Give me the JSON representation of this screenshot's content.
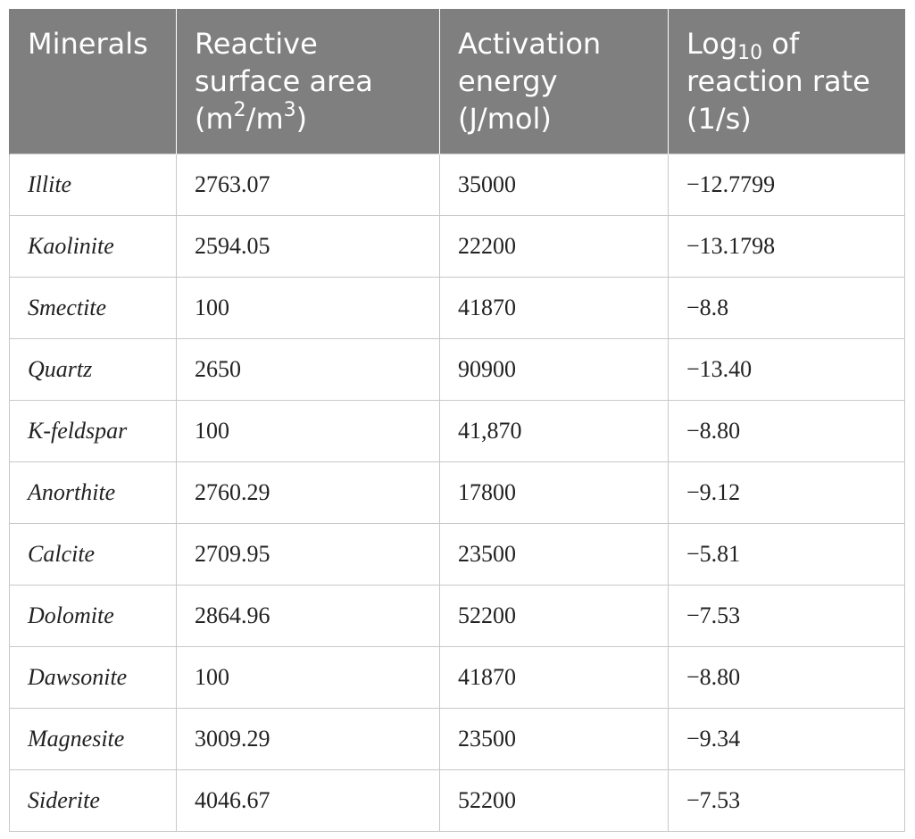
{
  "table": {
    "headers": {
      "minerals": "Minerals",
      "area_line1": "Reactive",
      "area_line2": "surface area",
      "area_unit_pre": "(m",
      "area_unit_sup1": "2",
      "area_unit_mid": "/m",
      "area_unit_sup2": "3",
      "area_unit_post": ")",
      "energy_line1": "Activation",
      "energy_line2": "energy",
      "energy_unit": "(J/mol)",
      "rate_pre": "Log",
      "rate_sub": "10",
      "rate_post": " of",
      "rate_line2": "reaction rate",
      "rate_unit": "(1/s)"
    },
    "rows": [
      {
        "mineral": "Illite",
        "area": "2763.07",
        "energy": "35000",
        "rate": "−12.7799"
      },
      {
        "mineral": "Kaolinite",
        "area": "2594.05",
        "energy": "22200",
        "rate": "−13.1798"
      },
      {
        "mineral": "Smectite",
        "area": "100",
        "energy": "41870",
        "rate": "−8.8"
      },
      {
        "mineral": "Quartz",
        "area": "2650",
        "energy": "90900",
        "rate": "−13.40"
      },
      {
        "mineral": "K-feldspar",
        "area": "100",
        "energy": "41,870",
        "rate": "−8.80"
      },
      {
        "mineral": "Anorthite",
        "area": "2760.29",
        "energy": "17800",
        "rate": "−9.12"
      },
      {
        "mineral": "Calcite",
        "area": "2709.95",
        "energy": "23500",
        "rate": "−5.81"
      },
      {
        "mineral": "Dolomite",
        "area": "2864.96",
        "energy": "52200",
        "rate": "−7.53"
      },
      {
        "mineral": "Dawsonite",
        "area": "100",
        "energy": "41870",
        "rate": "−8.80"
      },
      {
        "mineral": "Magnesite",
        "area": "3009.29",
        "energy": "23500",
        "rate": "−9.34"
      },
      {
        "mineral": "Siderite",
        "area": "4046.67",
        "energy": "52200",
        "rate": "−7.53"
      }
    ]
  }
}
